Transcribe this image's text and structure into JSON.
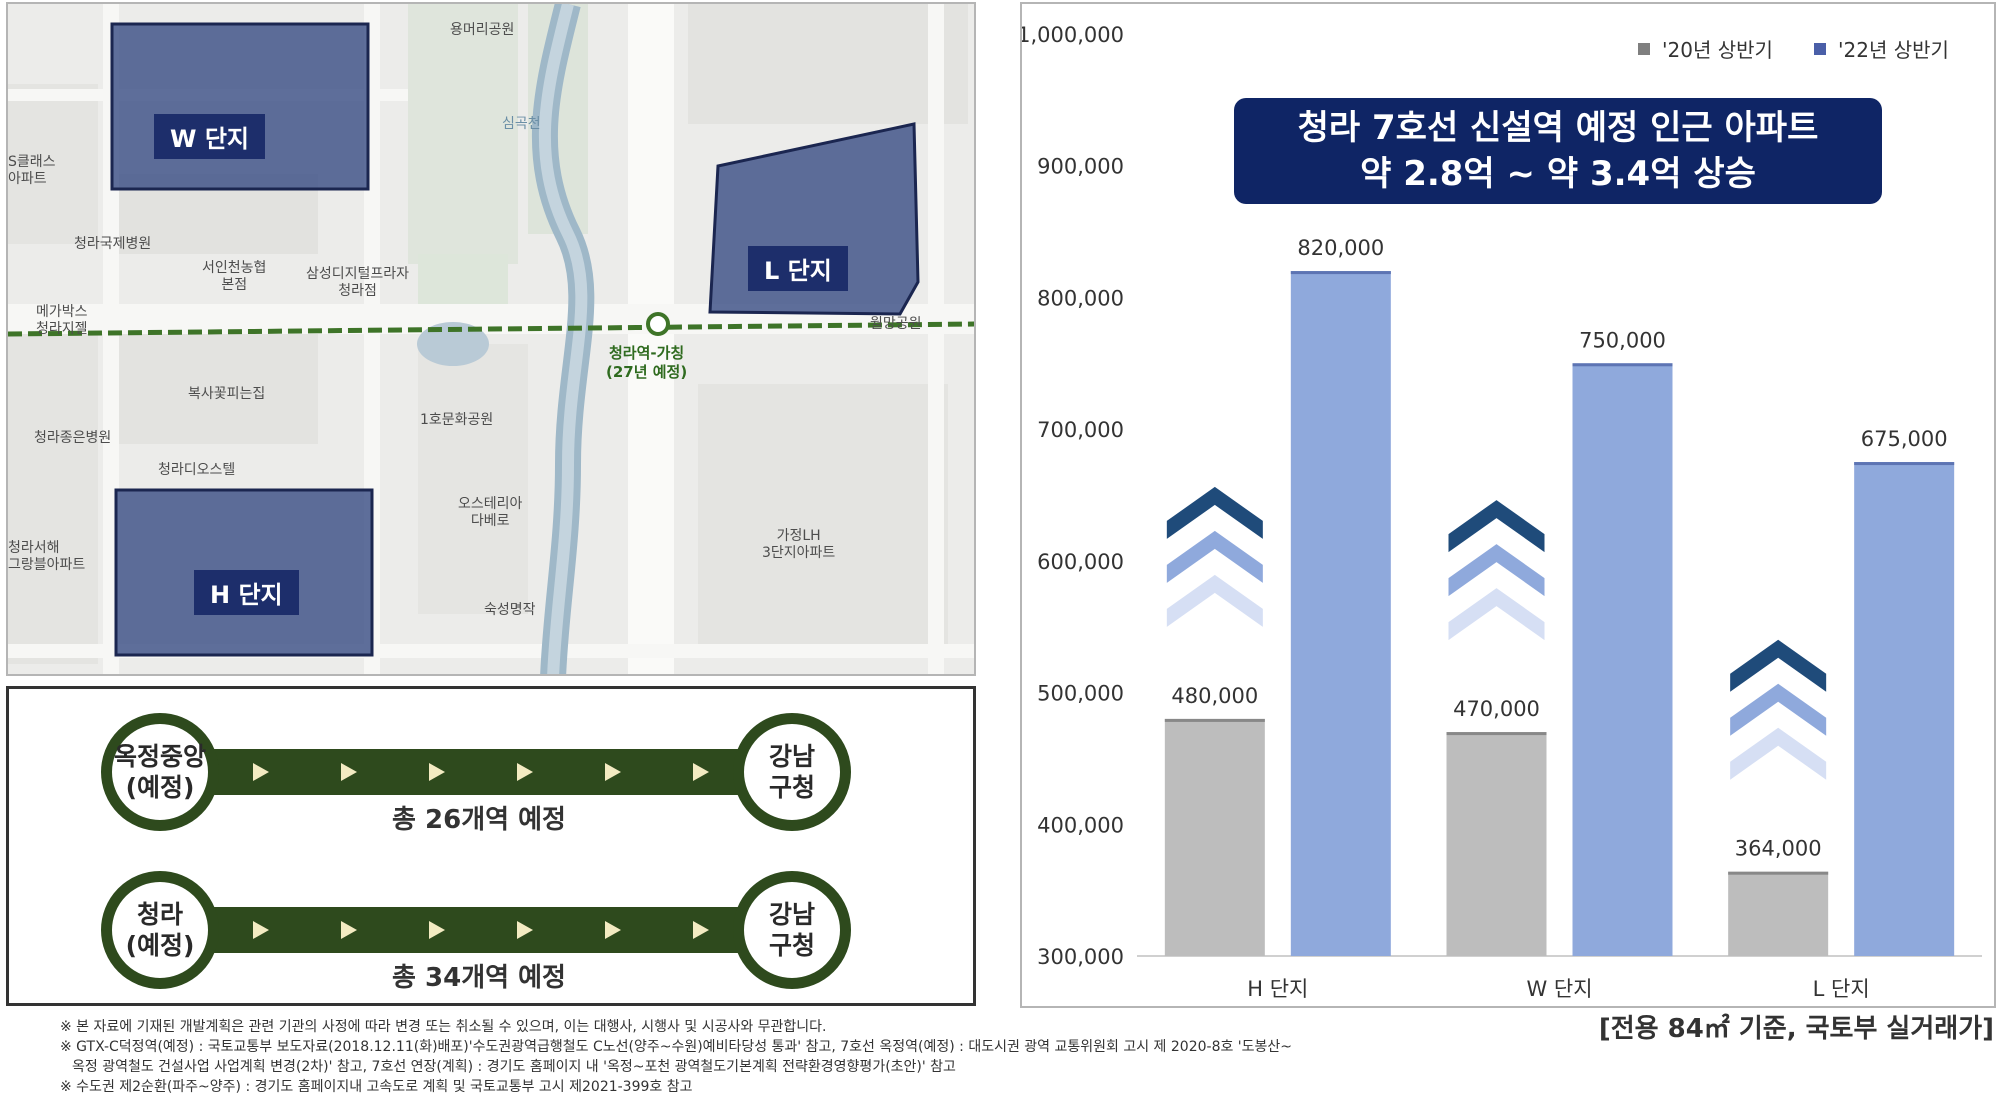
{
  "map": {
    "complexes": [
      {
        "id": "w",
        "label": "W 단지"
      },
      {
        "id": "l",
        "label": "L 단지"
      },
      {
        "id": "h",
        "label": "H 단지"
      }
    ],
    "station": {
      "name": "청라역-가칭",
      "note": "(27년 예정)"
    },
    "pois": [
      {
        "id": "yongmeori",
        "label": "용머리공원"
      },
      {
        "id": "simgokcheon",
        "label": "심곡천"
      },
      {
        "id": "s-class",
        "label": "S클래스\n아파트"
      },
      {
        "id": "international-hospital",
        "label": "청라국제병원"
      },
      {
        "id": "seoincheon",
        "label": "서인천농협\n본점"
      },
      {
        "id": "samsung",
        "label": "삼성디지털프라자\n청라점"
      },
      {
        "id": "megabox",
        "label": "메가박스\n청라지젤"
      },
      {
        "id": "wolmang",
        "label": "월망공원"
      },
      {
        "id": "boksa",
        "label": "복사꽃피는집"
      },
      {
        "id": "munhwa",
        "label": "1호문화공원"
      },
      {
        "id": "cheongna-hospital",
        "label": "청라종은병원"
      },
      {
        "id": "cheongna-hotel",
        "label": "청라디오스텔"
      },
      {
        "id": "ostteria",
        "label": "오스테리아\n다베로"
      },
      {
        "id": "gajeong",
        "label": "가정LH\n3단지아파트"
      },
      {
        "id": "seohae",
        "label": "청라서해\n그랑블아파트"
      },
      {
        "id": "sukseong",
        "label": "숙성명작"
      }
    ]
  },
  "routes": [
    {
      "start": [
        "옥정중앙",
        "(예정)"
      ],
      "end": [
        "강남",
        "구청"
      ],
      "caption": "총 26개역 예정"
    },
    {
      "start": [
        "청라",
        "(예정)"
      ],
      "end": [
        "강남",
        "구청"
      ],
      "caption": "총 34개역 예정"
    }
  ],
  "footnotes": [
    "※ 본 자료에 기재된 개발계획은 관련 기관의 사정에 따라 변경 또는 취소될 수 있으며, 이는 대행사, 시행사 및 시공사와 무관합니다.",
    "※ GTX-C덕정역(예정) : 국토교통부 보도자료(2018.12.11(화)배포)'수도권광역급행철도 C노선(양주~수원)예비타당성 통과' 참고, 7호선 옥정역(예정) : 대도시권 광역 교통위원회 고시 제 2020-8호 '도봉산~",
    "옥정 광역철도 건설사업 사업계획 변경(2차)' 참고, 7호선 연장(계획) : 경기도 홈페이지 내 '옥정~포천 광역철도기본계획 전략환경영향평가(초안)' 참고",
    "※ 수도권 제2순환(파주~양주) : 경기도 홈페이지내 고속도로 계획 및 국토교통부 고시 제2021-399호 참고"
  ],
  "chart_data": {
    "type": "bar",
    "title": "청라 7호선 신설역 예정 인근 아파트",
    "subtitle": "약 2.8억 ~ 약 3.4억 상승",
    "categories": [
      "H 단지",
      "W 단지",
      "L 단지"
    ],
    "series": [
      {
        "name": "'20년 상반기",
        "values": [
          480000,
          470000,
          364000
        ],
        "color": "#bdbdbd"
      },
      {
        "name": "'22년 상반기",
        "values": [
          820000,
          750000,
          675000
        ],
        "color": "#8fa9dc"
      }
    ],
    "data_labels": [
      [
        "480,000",
        "470,000",
        "364,000"
      ],
      [
        "820,000",
        "750,000",
        "675,000"
      ]
    ],
    "ylim": [
      300000,
      1000000
    ],
    "yticks": [
      300000,
      400000,
      500000,
      600000,
      700000,
      800000,
      900000,
      1000000
    ],
    "ytick_labels": [
      "300,000",
      "400,000",
      "500,000",
      "600,000",
      "700,000",
      "800,000",
      "900,000",
      "1,000,000"
    ],
    "legend_position": "top-right",
    "grid": false,
    "source": "[전용 84㎡ 기준, 국토부 실거래가]",
    "chevron_colors": [
      "#1f4b7a",
      "#8fa9dc",
      "#d6dff4"
    ]
  }
}
